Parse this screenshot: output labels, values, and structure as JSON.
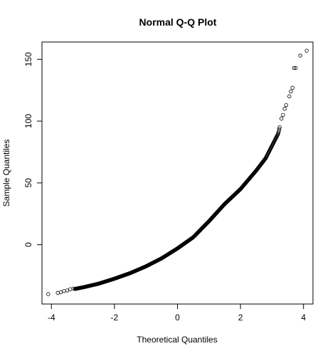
{
  "chart_data": {
    "type": "scatter",
    "title": "Normal Q-Q Plot",
    "xlabel": "Theoretical Quantiles",
    "ylabel": "Sample Quantiles",
    "xlim": [
      -4.3,
      4.3
    ],
    "ylim": [
      -48,
      164
    ],
    "x_ticks": [
      -4,
      -2,
      0,
      2,
      4
    ],
    "x_tick_labels": [
      "-4",
      "-2",
      "0",
      "2",
      "4"
    ],
    "y_ticks": [
      0,
      50,
      100,
      150
    ],
    "y_tick_labels": [
      "0",
      "50",
      "100",
      "150"
    ],
    "grid": false,
    "legend": "none",
    "marker": "open-circle",
    "curve_points": [
      [
        -4.1,
        -40
      ],
      [
        -3.8,
        -39
      ],
      [
        -3.5,
        -37
      ],
      [
        -3.2,
        -35.5
      ],
      [
        -3.0,
        -34.5
      ],
      [
        -2.5,
        -31.5
      ],
      [
        -2.0,
        -27.5
      ],
      [
        -1.5,
        -23
      ],
      [
        -1.0,
        -17.5
      ],
      [
        -0.5,
        -11
      ],
      [
        0.0,
        -3
      ],
      [
        0.5,
        6
      ],
      [
        1.0,
        19
      ],
      [
        1.5,
        33
      ],
      [
        2.0,
        45
      ],
      [
        2.5,
        60
      ],
      [
        2.8,
        70
      ],
      [
        3.0,
        80
      ],
      [
        3.2,
        90
      ],
      [
        3.3,
        102
      ],
      [
        3.4,
        110
      ],
      [
        3.5,
        120
      ],
      [
        3.6,
        127
      ],
      [
        3.75,
        143
      ],
      [
        3.9,
        153
      ],
      [
        4.1,
        157
      ]
    ],
    "outlier_points": [
      [
        -4.1,
        -40
      ],
      [
        -3.8,
        -39
      ],
      [
        -3.7,
        -38.5
      ],
      [
        -3.6,
        -37.5
      ],
      [
        -3.5,
        -37
      ],
      [
        -3.4,
        -36
      ],
      [
        -3.3,
        -35.5
      ],
      [
        3.3,
        102
      ],
      [
        3.35,
        105
      ],
      [
        3.4,
        110
      ],
      [
        3.45,
        113
      ],
      [
        3.55,
        120
      ],
      [
        3.6,
        124
      ],
      [
        3.65,
        127
      ],
      [
        3.7,
        143
      ],
      [
        3.75,
        143
      ],
      [
        3.9,
        153
      ],
      [
        4.1,
        157
      ]
    ]
  }
}
